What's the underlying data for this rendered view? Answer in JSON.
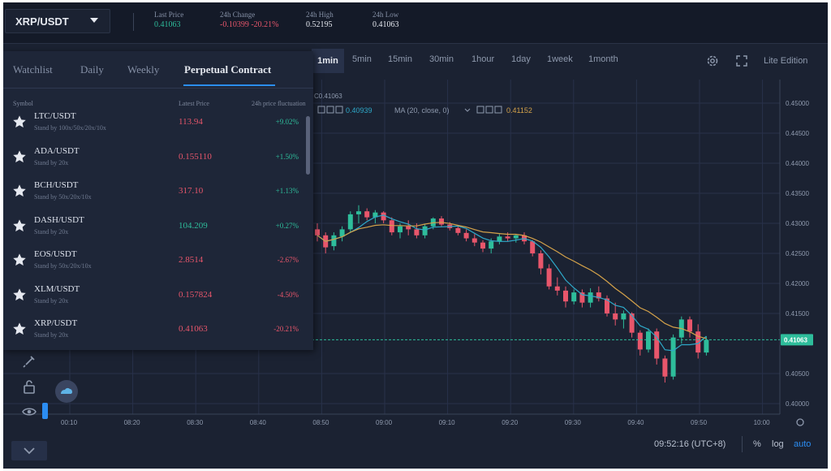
{
  "header": {
    "pair": "XRP/USDT",
    "stats": [
      {
        "label": "Last Price",
        "value": "0.41063",
        "color": "green"
      },
      {
        "label": "24h Change",
        "value": "-0.10399 -20.21%",
        "color": "red"
      },
      {
        "label": "24h High",
        "value": "0.52195",
        "color": "white"
      },
      {
        "label": "24h Low",
        "value": "0.41063",
        "color": "white"
      }
    ]
  },
  "toolbar": {
    "intervals": [
      "1min",
      "5min",
      "15min",
      "30min",
      "1hour",
      "1day",
      "1week",
      "1month"
    ],
    "active_interval": "1min",
    "lite_edition": "Lite Edition"
  },
  "chart": {
    "legend_left_value": "0.41063",
    "legend_line1_value": "0.40939",
    "ma_label": "MA (20, close, 0)",
    "ma_value": "0.41152",
    "y_ticks": [
      "0.45000",
      "0.44500",
      "0.44000",
      "0.43500",
      "0.43000",
      "0.42500",
      "0.42000",
      "0.41500",
      "0.40500",
      "0.40000"
    ],
    "x_ticks": [
      "00:10",
      "08:20",
      "08:30",
      "08:40",
      "08:50",
      "09:00",
      "09:10",
      "09:20",
      "09:30",
      "09:40",
      "09:50",
      "10:00"
    ],
    "last_price_tag": "0.41063",
    "colors": {
      "up": "#2ebd9b",
      "down": "#e8566b",
      "ma_fast": "#2ea8c8",
      "ma_slow": "#d4a24a",
      "accent": "#2b8df2"
    }
  },
  "watchlist": {
    "tabs": [
      "Watchlist",
      "Daily",
      "Weekly",
      "Perpetual Contract"
    ],
    "active_tab": 3,
    "columns": [
      "Symbol",
      "Latest Price",
      "24h price fluctuation"
    ],
    "rows": [
      {
        "symbol": "LTC/USDT",
        "sub": "Stand by 100x/50x/20x/10x",
        "price": "113.94",
        "price_color": "red",
        "change": "+9.02%",
        "change_color": "green"
      },
      {
        "symbol": "ADA/USDT",
        "sub": "Stand by 20x",
        "price": "0.155110",
        "price_color": "red",
        "change": "+1.50%",
        "change_color": "green"
      },
      {
        "symbol": "BCH/USDT",
        "sub": "Stand by 50x/20x/10x",
        "price": "317.10",
        "price_color": "red",
        "change": "+1.13%",
        "change_color": "green"
      },
      {
        "symbol": "DASH/USDT",
        "sub": "Stand by 20x",
        "price": "104.209",
        "price_color": "green",
        "change": "+0.27%",
        "change_color": "green"
      },
      {
        "symbol": "EOS/USDT",
        "sub": "Stand by 50x/20x/10x",
        "price": "2.8514",
        "price_color": "red",
        "change": "-2.67%",
        "change_color": "red"
      },
      {
        "symbol": "XLM/USDT",
        "sub": "Stand by 20x",
        "price": "0.157824",
        "price_color": "red",
        "change": "-4.50%",
        "change_color": "red"
      },
      {
        "symbol": "XRP/USDT",
        "sub": "Stand by 20x",
        "price": "0.41063",
        "price_color": "red",
        "change": "-20.21%",
        "change_color": "red"
      }
    ]
  },
  "status": {
    "clock": "09:52:16 (UTC+8)",
    "percent": "%",
    "log": "log",
    "auto": "auto"
  }
}
